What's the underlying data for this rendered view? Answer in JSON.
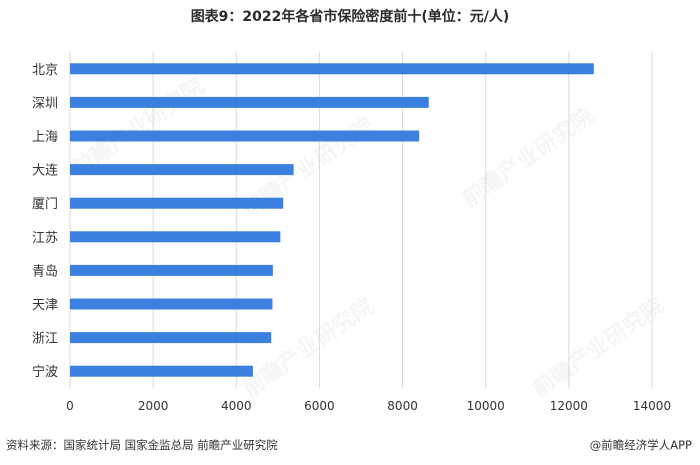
{
  "title": "图表9：2022年各省市保险密度前十(单位：元/人)",
  "source": "资料来源：国家统计局 国家金监总局 前瞻产业研究院",
  "brand": "@前瞻经济学人APP",
  "watermark": "前瞻产业研究院",
  "chart_data": {
    "type": "bar",
    "orientation": "horizontal",
    "title": "图表9：2022年各省市保险密度前十(单位：元/人)",
    "categories": [
      "北京",
      "深圳",
      "上海",
      "大连",
      "厦门",
      "江苏",
      "青岛",
      "天津",
      "浙江",
      "宁波"
    ],
    "values": [
      12600,
      8630,
      8400,
      5380,
      5130,
      5060,
      4880,
      4870,
      4840,
      4400
    ],
    "xlim": [
      0,
      14000
    ],
    "xticks": [
      0,
      2000,
      4000,
      6000,
      8000,
      10000,
      12000,
      14000
    ],
    "grid": true,
    "bar_color": "#3b7fe0"
  }
}
